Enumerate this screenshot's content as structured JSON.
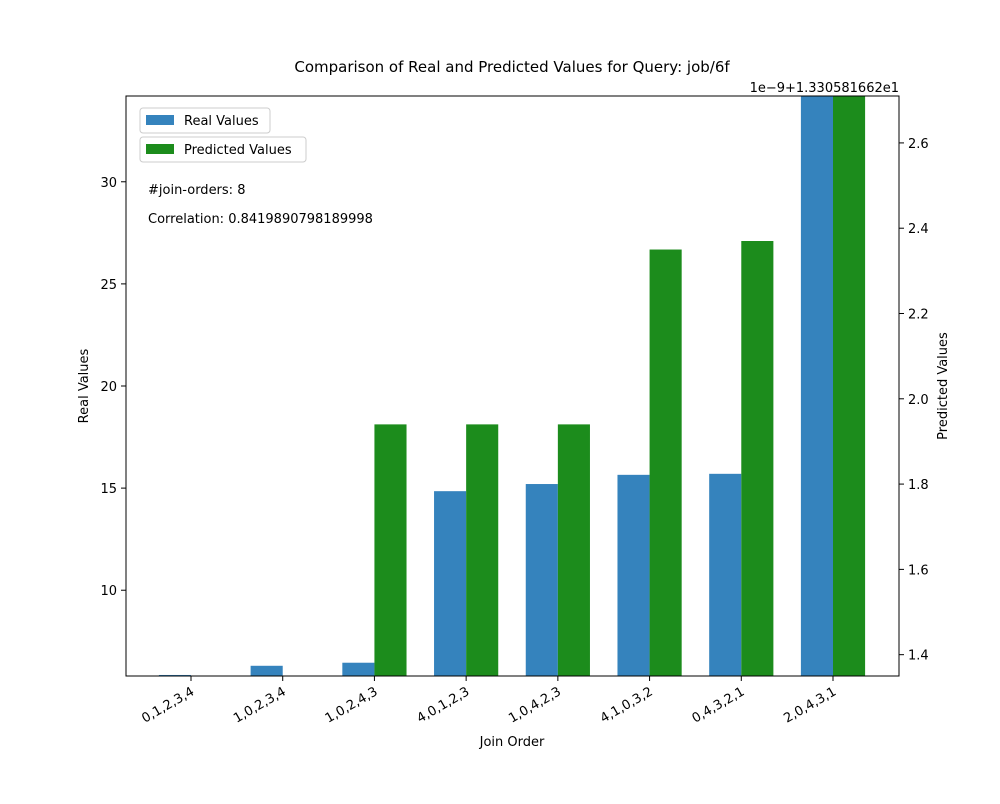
{
  "chart_data": {
    "type": "bar",
    "title": "Comparison of Real and Predicted Values for Query: job/6f",
    "xlabel": "Join Order",
    "ylabel": "Real Values",
    "ylabel_right": "Predicted Values",
    "right_axis_offset_label": "1e−9+1.330581662e1",
    "categories": [
      "0,1,2,3,4",
      "1,0,2,3,4",
      "1,0,2,4,3",
      "4,0,1,2,3",
      "1,0,4,2,3",
      "4,1,0,3,2",
      "0,4,3,2,1",
      "2,0,4,3,1"
    ],
    "series": [
      {
        "name": "Real Values",
        "axis": "left",
        "color": "#3583bd",
        "values": [
          5.85,
          6.3,
          6.45,
          14.85,
          15.2,
          15.65,
          15.7,
          34.5
        ]
      },
      {
        "name": "Predicted Values",
        "axis": "right",
        "color": "#1c8c1c",
        "values": [
          1.34,
          1.34,
          1.94,
          1.94,
          1.94,
          2.35,
          2.37,
          2.72
        ]
      }
    ],
    "ylim": [
      5.8,
      34.2
    ],
    "ylim_right": [
      1.35,
      2.71
    ],
    "yticks": [
      10,
      15,
      20,
      25,
      30
    ],
    "yticks_right": [
      1.4,
      1.6,
      1.8,
      2.0,
      2.2,
      2.4,
      2.6
    ],
    "legend_placement": "top-left",
    "grid": false,
    "annotations": [
      "#join-orders: 8",
      "Correlation: 0.8419890798189998"
    ]
  }
}
